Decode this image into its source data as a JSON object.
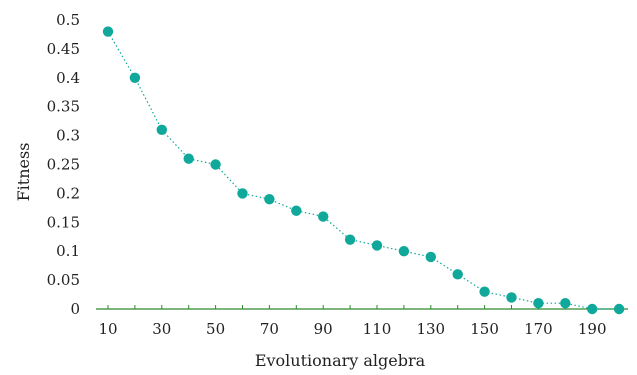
{
  "chart_data": {
    "type": "line",
    "title": "",
    "xlabel": "Evolutionary algebra",
    "ylabel": "Fitness",
    "x": [
      10,
      20,
      30,
      40,
      50,
      60,
      70,
      80,
      90,
      100,
      110,
      120,
      130,
      140,
      150,
      160,
      170,
      180,
      190,
      200
    ],
    "series": [
      {
        "values": [
          0.48,
          0.4,
          0.31,
          0.26,
          0.25,
          0.2,
          0.19,
          0.17,
          0.16,
          0.12,
          0.11,
          0.1,
          0.09,
          0.06,
          0.03,
          0.02,
          0.01,
          0.01,
          0.0,
          0.0
        ]
      }
    ],
    "xticks": [
      "10",
      "30",
      "50",
      "70",
      "90",
      "110",
      "130",
      "150",
      "170",
      "190"
    ],
    "yticks": [
      "0",
      "0.05",
      "0.1",
      "0.15",
      "0.2",
      "0.25",
      "0.3",
      "0.35",
      "0.4",
      "0.45",
      "0.5"
    ],
    "ylim": [
      0,
      0.5
    ],
    "grid": false,
    "legend": "none",
    "colors": {
      "marker": "#0fa89a",
      "line": "#0fa89a",
      "x_axis": "#2e8b2e"
    }
  }
}
